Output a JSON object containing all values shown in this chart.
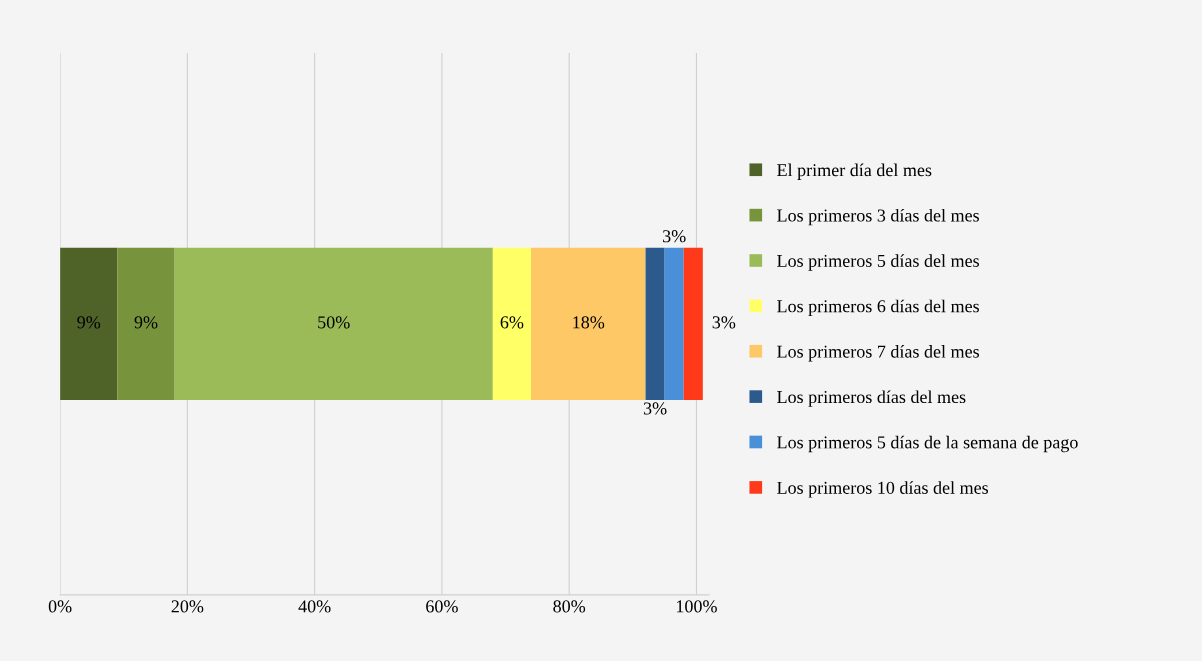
{
  "chart_data": {
    "type": "bar",
    "orientation": "horizontal",
    "stacked": true,
    "categories": [
      null
    ],
    "series": [
      {
        "name": "El primer día del mes",
        "color": "#4f6228",
        "values": [
          9
        ],
        "value_labels": [
          "9%"
        ]
      },
      {
        "name": "Los primeros 3 días del mes",
        "color": "#77933c",
        "values": [
          9
        ],
        "value_labels": [
          "9%"
        ]
      },
      {
        "name": "Los primeros 5 días del mes",
        "color": "#9bbb59",
        "values": [
          50
        ],
        "value_labels": [
          "50%"
        ]
      },
      {
        "name": "Los primeros 6 días del mes",
        "color": "#ffff66",
        "values": [
          6
        ],
        "value_labels": [
          "6%"
        ]
      },
      {
        "name": "Los primeros 7 días del mes",
        "color": "#ffc866",
        "values": [
          18
        ],
        "value_labels": [
          "18%"
        ]
      },
      {
        "name": "Los primeros días del mes",
        "color": "#2c5a8c",
        "values": [
          3
        ],
        "value_labels": [
          "3%"
        ]
      },
      {
        "name": "Los primeros 5 días de la semana de pago",
        "color": "#4a90d9",
        "values": [
          3
        ],
        "value_labels": [
          "3%"
        ]
      },
      {
        "name": "Los primeros 10 días del mes",
        "color": "#ff3a1a",
        "values": [
          3
        ],
        "value_labels": [
          "3%"
        ]
      }
    ],
    "xlim": [
      0,
      102
    ],
    "xticks": [
      {
        "value": 0,
        "label": "0%"
      },
      {
        "value": 20,
        "label": "20%"
      },
      {
        "value": 40,
        "label": "40%"
      },
      {
        "value": 60,
        "label": "60%"
      },
      {
        "value": 80,
        "label": "80%"
      },
      {
        "value": 100,
        "label": "100%"
      }
    ],
    "grid": "x",
    "legend": "right",
    "tick_labels": "x"
  }
}
